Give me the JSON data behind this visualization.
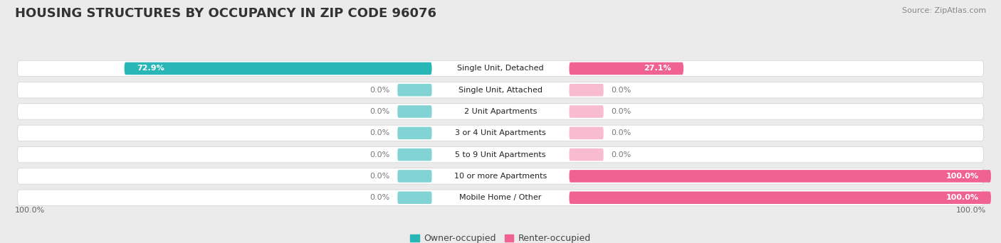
{
  "title": "HOUSING STRUCTURES BY OCCUPANCY IN ZIP CODE 96076",
  "source": "Source: ZipAtlas.com",
  "categories": [
    "Single Unit, Detached",
    "Single Unit, Attached",
    "2 Unit Apartments",
    "3 or 4 Unit Apartments",
    "5 to 9 Unit Apartments",
    "10 or more Apartments",
    "Mobile Home / Other"
  ],
  "owner_values": [
    72.9,
    0.0,
    0.0,
    0.0,
    0.0,
    0.0,
    0.0
  ],
  "renter_values": [
    27.1,
    0.0,
    0.0,
    0.0,
    0.0,
    100.0,
    100.0
  ],
  "owner_color": "#29b6b6",
  "renter_color": "#f06292",
  "owner_stub_color": "#82d4d4",
  "renter_stub_color": "#f8bbd0",
  "bg_color": "#ebebeb",
  "row_bg_color": "#ffffff",
  "title_fontsize": 13,
  "value_fontsize": 8,
  "cat_fontsize": 8,
  "legend_fontsize": 9,
  "source_fontsize": 8
}
